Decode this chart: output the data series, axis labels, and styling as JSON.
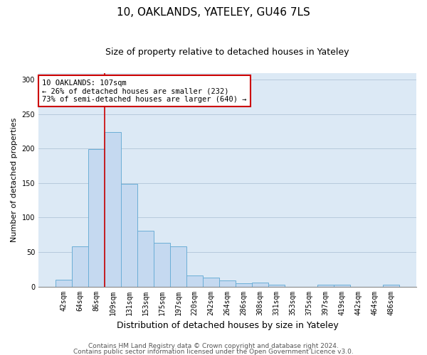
{
  "title1": "10, OAKLANDS, YATELEY, GU46 7LS",
  "title2": "Size of property relative to detached houses in Yateley",
  "xlabel": "Distribution of detached houses by size in Yateley",
  "ylabel": "Number of detached properties",
  "categories": [
    "42sqm",
    "64sqm",
    "86sqm",
    "109sqm",
    "131sqm",
    "153sqm",
    "175sqm",
    "197sqm",
    "220sqm",
    "242sqm",
    "264sqm",
    "286sqm",
    "308sqm",
    "331sqm",
    "353sqm",
    "375sqm",
    "397sqm",
    "419sqm",
    "442sqm",
    "464sqm",
    "486sqm"
  ],
  "values": [
    10,
    58,
    199,
    224,
    149,
    81,
    63,
    58,
    16,
    13,
    9,
    5,
    6,
    3,
    0,
    0,
    3,
    3,
    0,
    0,
    3
  ],
  "bar_color": "#c5d9f0",
  "bar_edge_color": "#6baed6",
  "vline_color": "#cc0000",
  "annotation_text": "10 OAKLANDS: 107sqm\n← 26% of detached houses are smaller (232)\n73% of semi-detached houses are larger (640) →",
  "annotation_box_facecolor": "#ffffff",
  "annotation_box_edgecolor": "#cc0000",
  "ylim": [
    0,
    310
  ],
  "yticks": [
    0,
    50,
    100,
    150,
    200,
    250,
    300
  ],
  "footer1": "Contains HM Land Registry data © Crown copyright and database right 2024.",
  "footer2": "Contains public sector information licensed under the Open Government Licence v3.0.",
  "bg_color": "#ffffff",
  "plot_bg_color": "#dce9f5",
  "grid_color": "#b0c4d8",
  "title1_fontsize": 11,
  "title2_fontsize": 9,
  "xlabel_fontsize": 9,
  "ylabel_fontsize": 8,
  "tick_fontsize": 7,
  "annotation_fontsize": 7.5,
  "footer_fontsize": 6.5
}
